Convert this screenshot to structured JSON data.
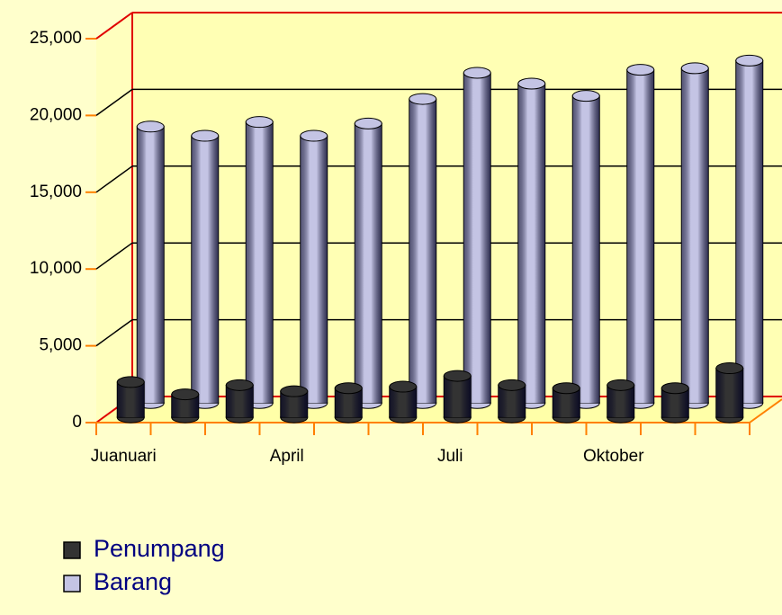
{
  "chart_data": {
    "type": "bar3d",
    "categories": [
      "Juanuari",
      null,
      null,
      "April",
      null,
      null,
      "Juli",
      null,
      null,
      "Oktober",
      null,
      null
    ],
    "series": [
      {
        "name": "Penumpang",
        "color": "#333333",
        "values": [
          2300,
          1500,
          2100,
          1700,
          1900,
          2000,
          2700,
          2100,
          1900,
          2100,
          1900,
          3200
        ]
      },
      {
        "name": "Barang",
        "color": "#c4c4e4",
        "values": [
          18000,
          17400,
          18300,
          17400,
          18200,
          19800,
          21500,
          20800,
          20000,
          21700,
          21800,
          22300
        ]
      }
    ],
    "ylim": [
      0,
      25000
    ],
    "yticks": [
      0,
      {
        "value": 5000,
        "label": "5,000"
      },
      {
        "value": 10000,
        "label": "10,000"
      },
      {
        "value": 15000,
        "label": "15,000"
      },
      {
        "value": 20000,
        "label": "20,000"
      },
      {
        "value": 25000,
        "label": "25,000"
      }
    ],
    "grid": true
  }
}
